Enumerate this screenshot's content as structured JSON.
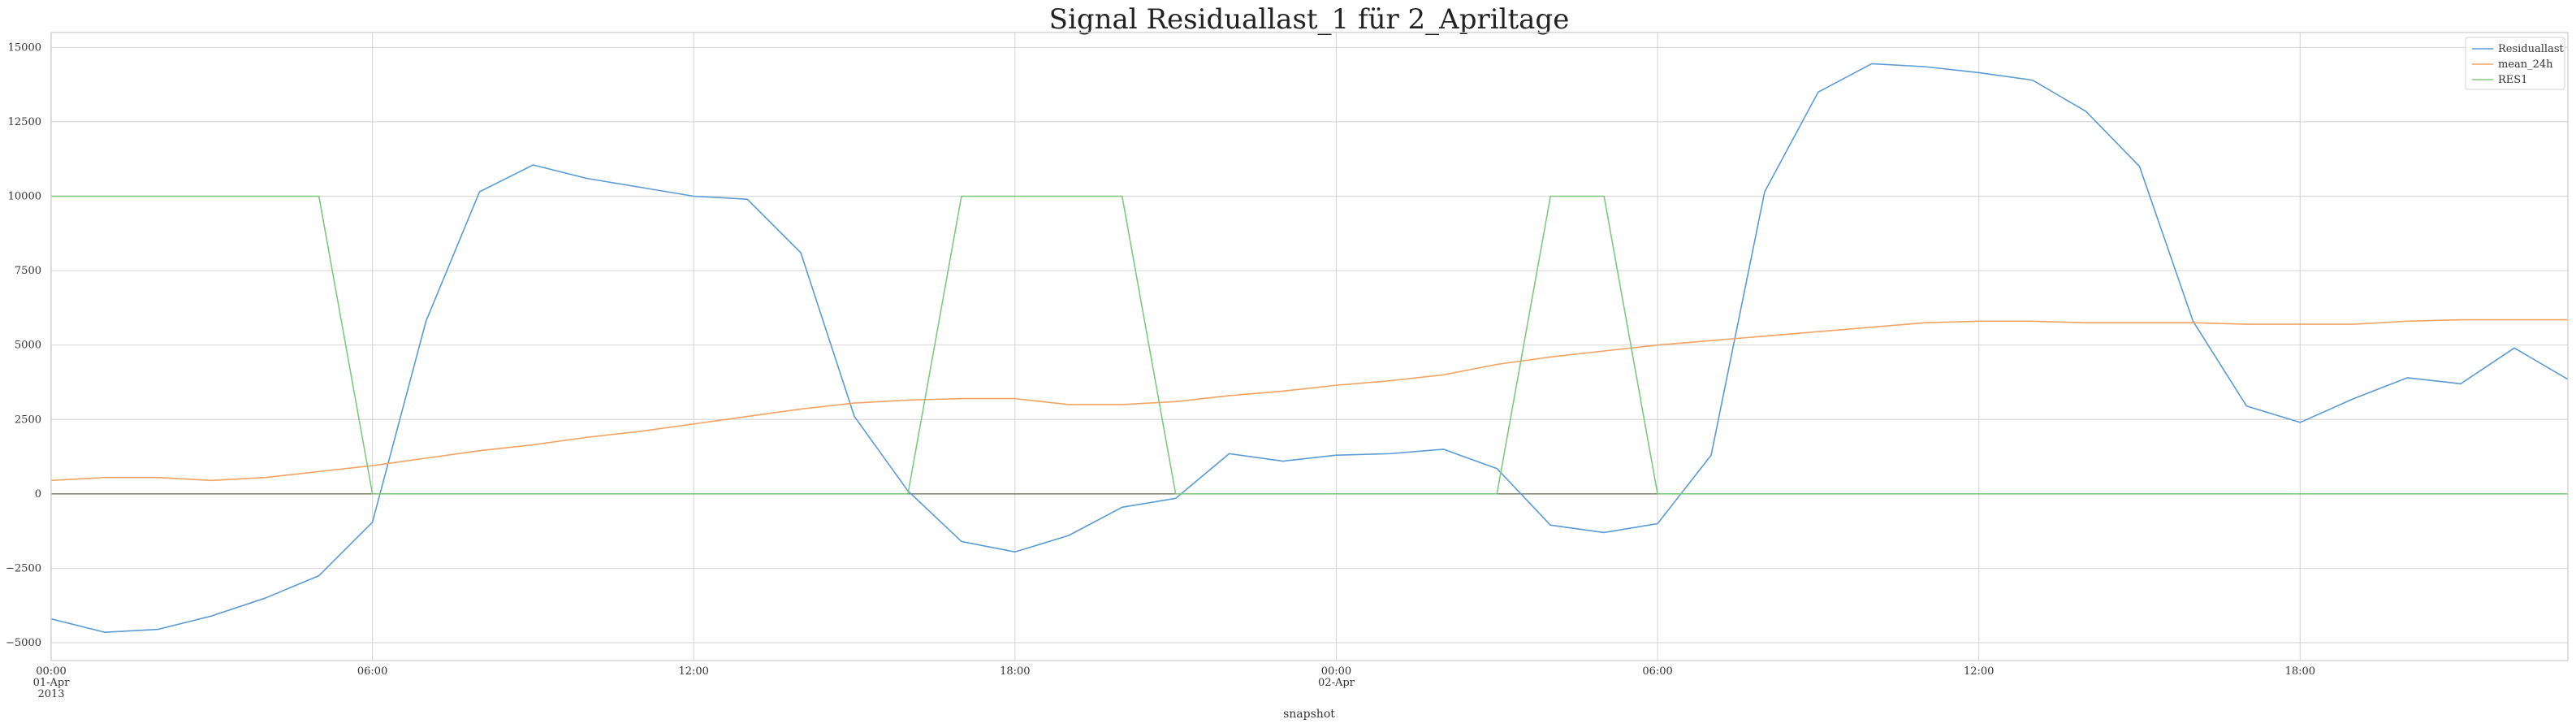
{
  "chart_data": {
    "type": "line",
    "title": "Signal Residuallast_1 für 2_Apriltage",
    "xlabel": "snapshot",
    "ylabel": "",
    "grid": true,
    "legend_position": "top-right",
    "x_hours": [
      0,
      1,
      2,
      3,
      4,
      5,
      6,
      7,
      8,
      9,
      10,
      11,
      12,
      13,
      14,
      15,
      16,
      17,
      18,
      19,
      20,
      21,
      22,
      23,
      24,
      25,
      26,
      27,
      28,
      29,
      30,
      31,
      32,
      33,
      34,
      35,
      36,
      37,
      38,
      39,
      40,
      41,
      42,
      43,
      44,
      45,
      46,
      47
    ],
    "xlim": [
      0,
      47
    ],
    "ylim": [
      -5600,
      15500
    ],
    "y_ticks": [
      -5000,
      -2500,
      0,
      2500,
      5000,
      7500,
      10000,
      12500,
      15000
    ],
    "y_tick_labels": [
      "−5000",
      "−2500",
      "0",
      "2500",
      "5000",
      "7500",
      "10000",
      "12500",
      "15000"
    ],
    "x_ticks": [
      {
        "hour": 0,
        "lines": [
          "00:00",
          "01-Apr",
          "2013"
        ]
      },
      {
        "hour": 6,
        "lines": [
          "06:00"
        ]
      },
      {
        "hour": 12,
        "lines": [
          "12:00"
        ]
      },
      {
        "hour": 18,
        "lines": [
          "18:00"
        ]
      },
      {
        "hour": 24,
        "lines": [
          "00:00",
          "02-Apr"
        ]
      },
      {
        "hour": 30,
        "lines": [
          "06:00"
        ]
      },
      {
        "hour": 36,
        "lines": [
          "12:00"
        ]
      },
      {
        "hour": 42,
        "lines": [
          "18:00"
        ]
      }
    ],
    "series": [
      {
        "name": "Residuallast",
        "color": "#5b9bd5",
        "values": [
          -4200,
          -4650,
          -4550,
          -4100,
          -3500,
          -2750,
          -950,
          5800,
          10150,
          11050,
          10600,
          10300,
          10000,
          9900,
          8100,
          2600,
          100,
          -1600,
          -1950,
          -1400,
          -450,
          -150,
          1350,
          1100,
          1300,
          1350,
          1500,
          850,
          -1050,
          -1300,
          -1000,
          1300,
          10150,
          13500,
          14450,
          14350,
          14150,
          13900,
          12850,
          11000,
          5800,
          2950,
          2400,
          3200,
          3900,
          3700,
          4900,
          3850
        ]
      },
      {
        "name": "mean_24h",
        "color": "#f4a261",
        "values": [
          450,
          550,
          550,
          450,
          550,
          750,
          950,
          1200,
          1450,
          1650,
          1900,
          2100,
          2350,
          2600,
          2850,
          3050,
          3150,
          3200,
          3200,
          3000,
          3000,
          3100,
          3300,
          3450,
          3650,
          3800,
          4000,
          4350,
          4600,
          4800,
          5000,
          5150,
          5300,
          5450,
          5600,
          5750,
          5800,
          5800,
          5750,
          5750,
          5750,
          5700,
          5700,
          5700,
          5800,
          5850,
          5850,
          5850
        ]
      },
      {
        "name": "RES1",
        "color": "#7fc97f",
        "values": [
          10000,
          10000,
          10000,
          10000,
          10000,
          10000,
          0,
          0,
          0,
          0,
          0,
          0,
          0,
          0,
          0,
          0,
          0,
          10000,
          10000,
          10000,
          10000,
          0,
          0,
          0,
          0,
          0,
          0,
          0,
          10000,
          10000,
          0,
          0,
          0,
          0,
          0,
          0,
          0,
          0,
          0,
          0,
          0,
          0,
          0,
          0,
          0,
          0,
          0,
          0
        ]
      }
    ]
  }
}
